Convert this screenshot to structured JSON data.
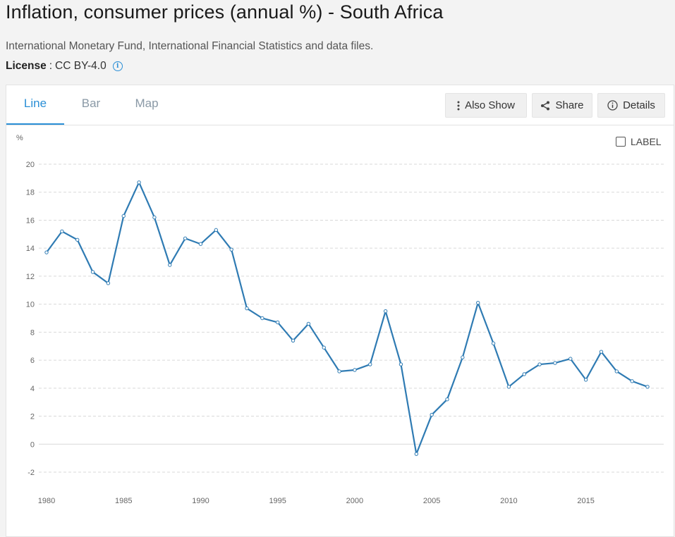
{
  "header": {
    "title": "Inflation, consumer prices (annual %) - South Africa",
    "source": "International Monetary Fund, International Financial Statistics and data files.",
    "license_label": "License",
    "license_sep": ":",
    "license_value": "CC BY-4.0",
    "info_icon": "info-icon"
  },
  "tabs": [
    {
      "label": "Line",
      "active": true
    },
    {
      "label": "Bar",
      "active": false
    },
    {
      "label": "Map",
      "active": false
    }
  ],
  "toolbar": {
    "also_show": "Also Show",
    "share": "Share",
    "details": "Details"
  },
  "label_toggle": "LABEL",
  "colors": {
    "accent": "#2a8fd6",
    "line": "#2f7bb3",
    "grid": "#d9d9d9"
  },
  "chart_data": {
    "type": "line",
    "title": "",
    "xlabel": "",
    "ylabel": "%",
    "xlim": [
      1980,
      2019
    ],
    "ylim": [
      -2,
      20
    ],
    "yticks": [
      -2,
      0,
      2,
      4,
      6,
      8,
      10,
      12,
      14,
      16,
      18,
      20
    ],
    "xticks": [
      1980,
      1985,
      1990,
      1995,
      2000,
      2005,
      2010,
      2015
    ],
    "grid": true,
    "legend": "none",
    "series": [
      {
        "x": [
          1980,
          1981,
          1982,
          1983,
          1984,
          1985,
          1986,
          1987,
          1988,
          1989,
          1990,
          1991,
          1992,
          1993,
          1994,
          1995,
          1996,
          1997,
          1998,
          1999,
          2000,
          2001,
          2002,
          2003,
          2004,
          2005,
          2006,
          2007,
          2008,
          2009,
          2010,
          2011,
          2012,
          2013,
          2014,
          2015,
          2016,
          2017,
          2018,
          2019
        ],
        "values": [
          13.7,
          15.2,
          14.6,
          12.3,
          11.5,
          16.3,
          18.7,
          16.2,
          12.8,
          14.7,
          14.3,
          15.3,
          13.9,
          9.7,
          9.0,
          8.7,
          7.4,
          8.6,
          6.9,
          5.2,
          5.3,
          5.7,
          9.5,
          5.7,
          -0.7,
          2.1,
          3.2,
          6.2,
          10.1,
          7.2,
          4.1,
          5.0,
          5.7,
          5.8,
          6.1,
          4.6,
          6.6,
          5.2,
          4.5,
          4.1
        ]
      }
    ]
  }
}
